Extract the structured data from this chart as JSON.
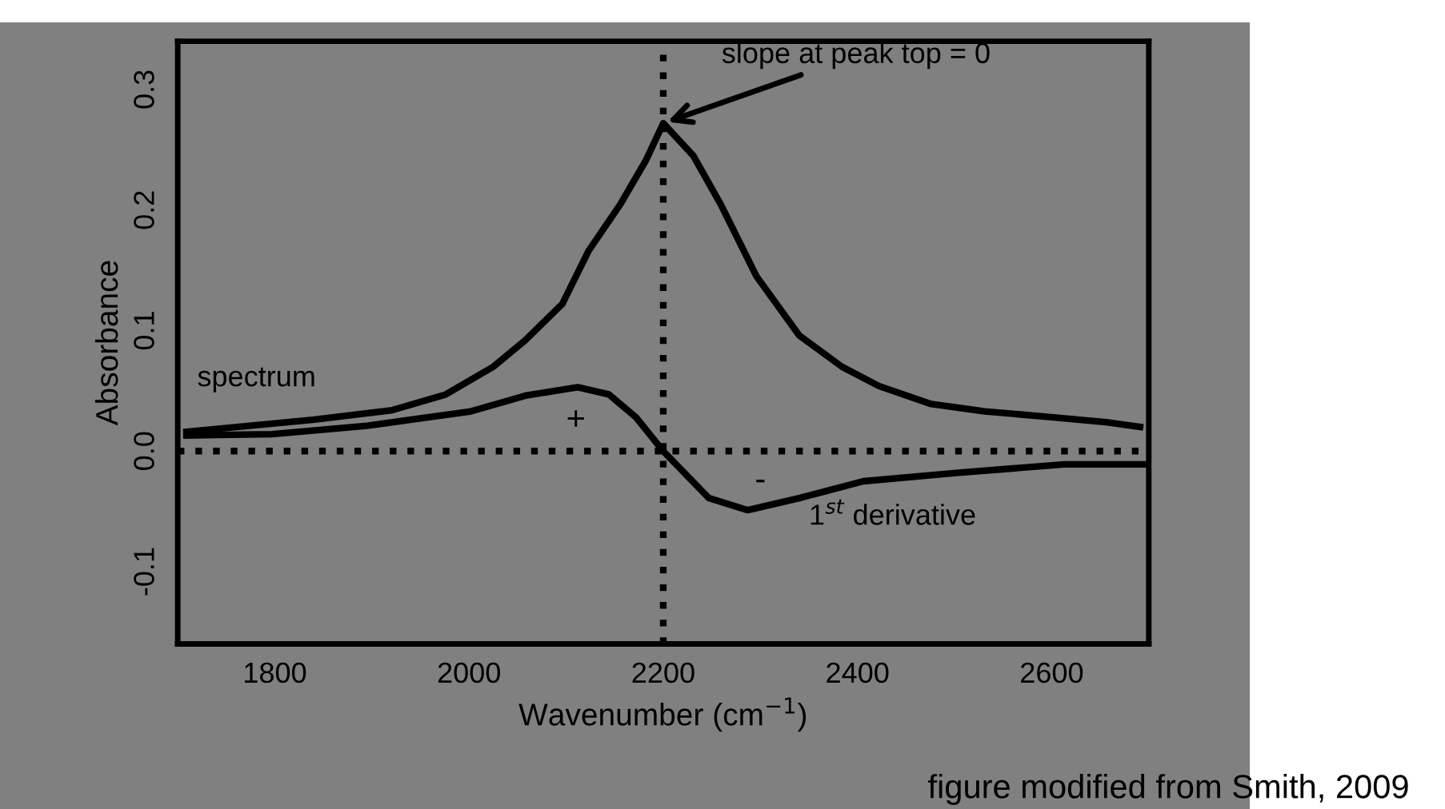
{
  "chart_data": {
    "type": "line",
    "xlabel": "Wavenumber (cm$^{−1}$)",
    "ylabel": "Absorbance",
    "xlim": [
      1700,
      2700
    ],
    "ylim": [
      -0.16,
      0.34
    ],
    "xticks": [
      1800,
      2000,
      2200,
      2400,
      2600
    ],
    "yticks": [
      -0.1,
      {
        "value": 0,
        "label": "0.0"
      },
      0.1,
      0.2,
      0.3
    ],
    "series": [
      {
        "name": "spectrum",
        "color": "#000000",
        "x": [
          1709,
          1839,
          1921,
          1976,
          2025,
          2058,
          2096,
          2123,
          2156,
          2182,
          2200,
          2231,
          2259,
          2296,
          2340,
          2384,
          2422,
          2476,
          2531,
          2602,
          2656,
          2691
        ],
        "values": [
          0.016,
          0.026,
          0.034,
          0.047,
          0.07,
          0.092,
          0.122,
          0.166,
          0.205,
          0.241,
          0.272,
          0.245,
          0.205,
          0.145,
          0.096,
          0.07,
          0.054,
          0.039,
          0.033,
          0.028,
          0.024,
          0.02
        ]
      },
      {
        "name": "1$^{st}$ derivative",
        "color": "#000000",
        "x": [
          1709,
          1797,
          1895,
          2002,
          2058,
          2112,
          2144,
          2172,
          2200,
          2247,
          2287,
          2340,
          2406,
          2504,
          2613,
          2695
        ],
        "values": [
          0.013,
          0.014,
          0.021,
          0.033,
          0.046,
          0.053,
          0.047,
          0.028,
          0.0,
          -0.039,
          -0.049,
          -0.039,
          -0.025,
          -0.018,
          -0.011,
          -0.011
        ]
      }
    ],
    "ref_lines": [
      {
        "axis": "y",
        "value": 0,
        "line_style": "dotted",
        "color": "#000000"
      },
      {
        "axis": "x",
        "value": 2200,
        "line_style": "dotted",
        "color": "#000000"
      }
    ],
    "annotations": [
      {
        "text": "slope at peak top = 0",
        "x": 2200,
        "y": 0.272
      },
      "+",
      "-",
      "figure modified from Smith, 2009"
    ],
    "grid": false,
    "legend": false,
    "marker": "none",
    "line_style": "solid"
  }
}
